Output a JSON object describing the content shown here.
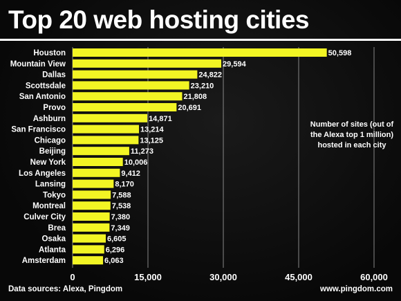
{
  "colors": {
    "bar": "#f2f524",
    "background": "#0b0b0b",
    "text": "#ffffff",
    "grid": "#888888"
  },
  "chart_data": {
    "type": "bar",
    "orientation": "horizontal",
    "title": "Top 20 web hosting cities",
    "categories": [
      "Houston",
      "Mountain View",
      "Dallas",
      "Scottsdale",
      "San Antonio",
      "Provo",
      "Ashburn",
      "San Francisco",
      "Chicago",
      "Beijing",
      "New York",
      "Los Angeles",
      "Lansing",
      "Tokyo",
      "Montreal",
      "Culver City",
      "Brea",
      "Osaka",
      "Atlanta",
      "Amsterdam"
    ],
    "values": [
      50598,
      29594,
      24822,
      23210,
      21808,
      20691,
      14871,
      13214,
      13125,
      11273,
      10006,
      9412,
      8170,
      7588,
      7538,
      7380,
      7349,
      6605,
      6296,
      6063
    ],
    "value_labels": [
      "50,598",
      "29,594",
      "24,822",
      "23,210",
      "21,808",
      "20,691",
      "14,871",
      "13,214",
      "13,125",
      "11,273",
      "10,006",
      "9,412",
      "8,170",
      "7,588",
      "7,538",
      "7,380",
      "7,349",
      "6,605",
      "6,296",
      "6,063"
    ],
    "xlim": [
      0,
      60000
    ],
    "ticks": [
      0,
      15000,
      30000,
      45000,
      60000
    ],
    "tick_labels": [
      "0",
      "15,000",
      "30,000",
      "45,000",
      "60,000"
    ],
    "grid": true,
    "annotation": "Number of sites (out of the Alexa top 1 million) hosted in each city"
  },
  "footer": {
    "source": "Data sources: Alexa, Pingdom",
    "credit": "www.pingdom.com"
  }
}
